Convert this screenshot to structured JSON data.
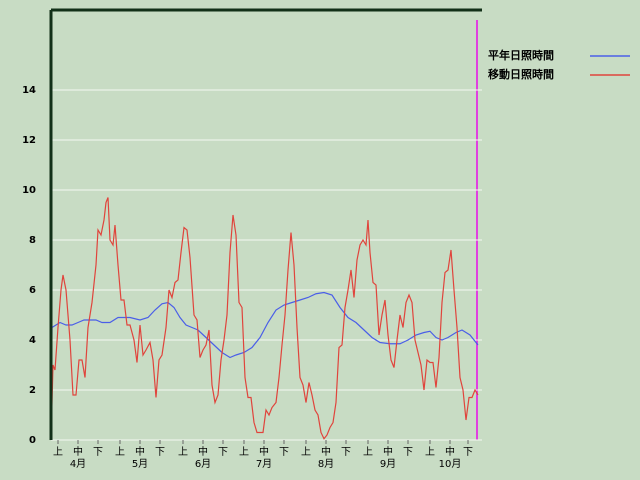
{
  "chart_data": {
    "type": "line",
    "xlim": [
      0,
      215.5
    ],
    "ylim": [
      0,
      17.2
    ],
    "yticks": [
      0,
      2,
      4,
      6,
      8,
      10,
      12,
      14
    ],
    "xticks": [
      {
        "value": 3.5,
        "label": "上"
      },
      {
        "value": 13.5,
        "label": "中"
      },
      {
        "value": 23.5,
        "label": "下"
      },
      {
        "value": 34.5,
        "label": "上"
      },
      {
        "value": 44.5,
        "label": "中"
      },
      {
        "value": 54.5,
        "label": "下"
      },
      {
        "value": 66,
        "label": "上"
      },
      {
        "value": 76,
        "label": "中"
      },
      {
        "value": 86,
        "label": "下"
      },
      {
        "value": 96.5,
        "label": "上"
      },
      {
        "value": 106.5,
        "label": "中"
      },
      {
        "value": 116.5,
        "label": "下"
      },
      {
        "value": 127.5,
        "label": "上"
      },
      {
        "value": 137.5,
        "label": "中"
      },
      {
        "value": 147.5,
        "label": "下"
      },
      {
        "value": 158.5,
        "label": "上"
      },
      {
        "value": 168.5,
        "label": "中"
      },
      {
        "value": 178.5,
        "label": "下"
      },
      {
        "value": 189.5,
        "label": "上"
      },
      {
        "value": 199.5,
        "label": "中"
      },
      {
        "value": 208.5,
        "label": "下"
      }
    ],
    "month_ticks": [
      {
        "value": 13.5,
        "label": "4月"
      },
      {
        "value": 44.5,
        "label": "5月"
      },
      {
        "value": 76,
        "label": "6月"
      },
      {
        "value": 106.5,
        "label": "7月"
      },
      {
        "value": 137.5,
        "label": "8月"
      },
      {
        "value": 168.5,
        "label": "9月"
      },
      {
        "value": 199.5,
        "label": "10月"
      }
    ],
    "grid": true,
    "legend": "right",
    "series": [
      {
        "name": "平年日照時間",
        "color": "#4a5ee8",
        "x": [
          0,
          0.5,
          2.5,
          4.5,
          7.5,
          10.5,
          13.5,
          16.5,
          22.5,
          25.5,
          29.5,
          33.5,
          39.5,
          44.5,
          48.5,
          52,
          55.5,
          58.5,
          61.5,
          64.5,
          67.5,
          70.5,
          73.5,
          77.5,
          81.5,
          85.5,
          89.5,
          92.5,
          96.5,
          100.5,
          104.5,
          108.5,
          112.5,
          116.5,
          120.5,
          124.5,
          128.5,
          132.5,
          136.5,
          140.5,
          144.5,
          148.5,
          152.5,
          156.5,
          160.5,
          164.5,
          169.5,
          174.5,
          178.5,
          182.5,
          186.5,
          189.5,
          192.5,
          195.5,
          198.5,
          202.5,
          205.5,
          209.5,
          213.5
        ],
        "values": [
          0,
          4.5,
          4.6,
          4.7,
          4.6,
          4.6,
          4.7,
          4.8,
          4.8,
          4.7,
          4.7,
          4.9,
          4.9,
          4.8,
          4.9,
          5.2,
          5.45,
          5.5,
          5.3,
          4.9,
          4.6,
          4.5,
          4.4,
          4.1,
          3.8,
          3.5,
          3.3,
          3.4,
          3.5,
          3.7,
          4.1,
          4.7,
          5.2,
          5.4,
          5.5,
          5.6,
          5.7,
          5.85,
          5.9,
          5.8,
          5.3,
          4.9,
          4.7,
          4.4,
          4.1,
          3.9,
          3.85,
          3.85,
          4.0,
          4.2,
          4.3,
          4.35,
          4.1,
          4.0,
          4.1,
          4.3,
          4.4,
          4.2,
          3.8
        ]
      },
      {
        "name": "移動日照時間",
        "color": "#e0443c",
        "x": [
          0,
          1,
          2,
          3.5,
          5,
          6,
          7.5,
          9.5,
          11,
          12.5,
          14,
          15.5,
          17,
          18.5,
          20.5,
          22.5,
          23.5,
          25,
          26.5,
          27.5,
          28.5,
          29.5,
          31,
          32,
          33.5,
          35,
          36.5,
          38,
          39.5,
          41.5,
          43,
          44.5,
          46,
          47.5,
          49.5,
          51,
          52.5,
          54,
          55.5,
          57.5,
          59,
          60.5,
          62,
          63.5,
          65,
          66.5,
          68,
          69.5,
          71.5,
          73,
          74.5,
          76,
          77.5,
          79,
          80.5,
          82,
          83.5,
          85,
          86.5,
          88,
          89.5,
          91,
          92.5,
          94,
          95.5,
          97,
          98.5,
          100,
          101.5,
          103,
          104.5,
          106,
          107.5,
          109,
          110.5,
          112.5,
          114,
          115.5,
          117,
          118.5,
          120,
          121.5,
          123,
          124.5,
          126,
          127.5,
          129,
          130.5,
          132,
          133.5,
          135,
          136.5,
          138,
          139.5,
          141,
          142.5,
          144,
          145.5,
          147,
          148.5,
          150,
          151.5,
          153,
          154.5,
          156,
          157.5,
          158.5,
          159.5,
          161,
          162.5,
          164,
          165.5,
          167,
          168.5,
          170,
          171.5,
          173,
          174.5,
          176,
          177.5,
          179,
          180.5,
          182,
          183.5,
          185,
          186.5,
          188,
          189.5,
          191,
          192.5,
          194,
          195.5,
          197,
          198.5,
          200,
          201.5,
          203,
          204.5,
          206,
          207.5,
          209,
          210.5,
          212,
          213.5
        ],
        "values": [
          0,
          3,
          2.8,
          4.5,
          6,
          6.6,
          6,
          4,
          1.8,
          1.8,
          3.2,
          3.2,
          2.5,
          4.5,
          5.5,
          7,
          8.4,
          8.2,
          8.8,
          9.5,
          9.7,
          8,
          7.8,
          8.6,
          7,
          5.6,
          5.6,
          4.6,
          4.6,
          4,
          3.1,
          4.6,
          3.4,
          3.6,
          3.9,
          3.2,
          1.7,
          3.2,
          3.4,
          4.5,
          6,
          5.7,
          6.3,
          6.4,
          7.5,
          8.5,
          8.4,
          7.3,
          5,
          4.8,
          3.3,
          3.6,
          3.8,
          4.4,
          2.2,
          1.5,
          1.8,
          3.2,
          4,
          5,
          7.5,
          9,
          8.2,
          5.5,
          5.3,
          2.5,
          1.7,
          1.7,
          0.7,
          0.3,
          0.3,
          0.3,
          1.2,
          1,
          1.3,
          1.5,
          2.5,
          3.8,
          5,
          6.8,
          8.3,
          7,
          4.5,
          2.5,
          2.2,
          1.5,
          2.3,
          1.8,
          1.2,
          1,
          0.3,
          0.05,
          0.2,
          0.5,
          0.7,
          1.5,
          3.7,
          3.8,
          5.3,
          6,
          6.8,
          5.7,
          7.2,
          7.8,
          8,
          7.8,
          8.8,
          7.5,
          6.3,
          6.2,
          4.2,
          5,
          5.6,
          4.2,
          3.2,
          2.9,
          4,
          5,
          4.5,
          5.5,
          5.8,
          5.5,
          4,
          3.5,
          3,
          2,
          3.2,
          3.1,
          3.1,
          2.1,
          3.3,
          5.5,
          6.7,
          6.8,
          7.6,
          6,
          4.5,
          2.5,
          2,
          0.8,
          1.7,
          1.7,
          2,
          1.8
        ]
      }
    ]
  }
}
